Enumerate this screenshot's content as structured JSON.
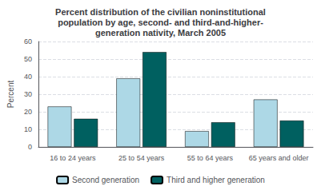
{
  "chart_data": {
    "type": "bar",
    "title": "Percent distribution of the civilian noninstitutional\npopulation by age, second- and third-and-higher-\ngeneration nativity, March 2005",
    "categories": [
      "16 to 24 years",
      "25 to 54 years",
      "55 to 64 years",
      "65 years and older"
    ],
    "series": [
      {
        "name": "Second generation",
        "color": "#add8e6",
        "values": [
          23,
          39,
          9,
          27
        ]
      },
      {
        "name": "Third and higher generation",
        "color": "#006060",
        "values": [
          16,
          54,
          14,
          15
        ]
      }
    ],
    "ylabel": "Percent",
    "ylim": [
      0,
      60
    ],
    "yticks": [
      0,
      10,
      20,
      30,
      40,
      50,
      60
    ],
    "grid": true,
    "legend": "bottom"
  }
}
